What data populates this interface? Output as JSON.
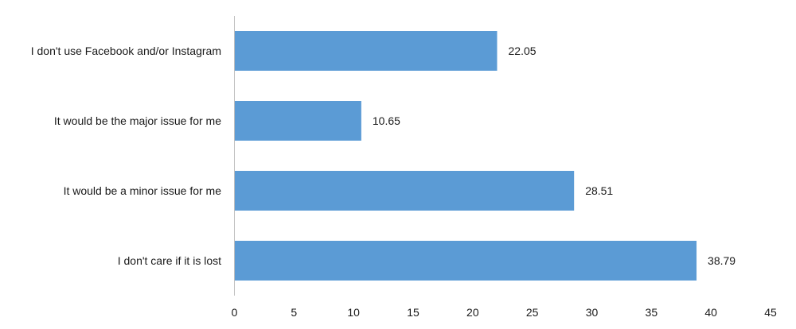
{
  "chart_data": {
    "type": "bar",
    "orientation": "horizontal",
    "title": "",
    "xlabel": "",
    "ylabel": "",
    "categories": [
      "I don't use Facebook and/or Instagram",
      "It would be the major issue for me",
      "It would be a minor issue for me",
      "I don't care if it is lost"
    ],
    "values": [
      22.05,
      10.65,
      28.51,
      38.79
    ],
    "value_labels": [
      "22.05",
      "10.65",
      "28.51",
      "38.79"
    ],
    "xlim": [
      0,
      45
    ],
    "ticks": [
      "0",
      "5",
      "10",
      "15",
      "20",
      "25",
      "30",
      "35",
      "40",
      "45"
    ],
    "grid": false,
    "legend": "none",
    "bar_color": "#5b9bd5"
  }
}
